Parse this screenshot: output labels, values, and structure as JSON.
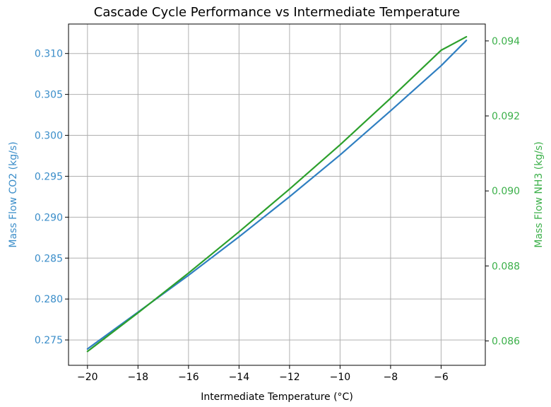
{
  "chart_data": {
    "type": "line",
    "title": "Cascade Cycle Performance vs Intermediate Temperature",
    "xlabel": "Intermediate Temperature (°C)",
    "xlim": [
      -20.75,
      -4.25
    ],
    "xticks": [
      -20,
      -18,
      -16,
      -14,
      -12,
      -10,
      -8,
      -6
    ],
    "xtick_labels": [
      "−20",
      "−18",
      "−16",
      "−14",
      "−12",
      "−10",
      "−8",
      "−6"
    ],
    "left_axis": {
      "label": "Mass Flow CO2 (kg/s)",
      "color": "#3a8dc9",
      "ylim": [
        0.2719,
        0.3136
      ],
      "ticks": [
        0.275,
        0.28,
        0.285,
        0.29,
        0.295,
        0.3,
        0.305,
        0.31
      ],
      "tick_labels": [
        "0.275",
        "0.280",
        "0.285",
        "0.290",
        "0.295",
        "0.300",
        "0.305",
        "0.310"
      ]
    },
    "right_axis": {
      "label": "Mass Flow NH3 (kg/s)",
      "color": "#3cb04a",
      "ylim": [
        0.08535,
        0.09445
      ],
      "ticks": [
        0.086,
        0.088,
        0.09,
        0.092,
        0.094
      ],
      "tick_labels": [
        "0.086",
        "0.088",
        "0.090",
        "0.092",
        "0.094"
      ]
    },
    "series": [
      {
        "axis": "left",
        "color": "#2f7fc1",
        "x": [
          -20,
          -18,
          -16,
          -14,
          -12,
          -10,
          -8,
          -6,
          -5
        ],
        "y": [
          0.2739,
          0.2784,
          0.2829,
          0.2876,
          0.2925,
          0.2976,
          0.303,
          0.3085,
          0.3116
        ]
      },
      {
        "axis": "right",
        "color": "#2ca02c",
        "x": [
          -20,
          -18,
          -16,
          -14,
          -12,
          -10,
          -8,
          -6,
          -5
        ],
        "y": [
          0.08572,
          0.08675,
          0.08781,
          0.08891,
          0.09005,
          0.09123,
          0.09247,
          0.09375,
          0.09411
        ]
      }
    ],
    "grid": true,
    "legend": "none"
  }
}
